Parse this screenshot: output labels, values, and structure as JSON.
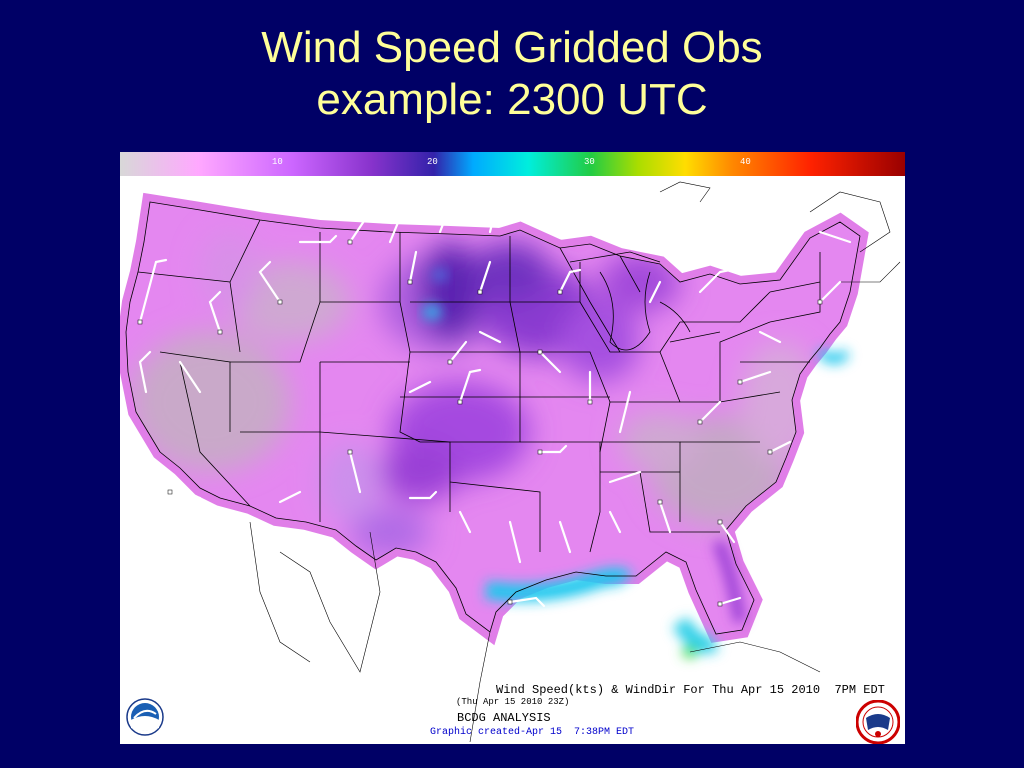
{
  "slide": {
    "title_line1": "Wind Speed Gridded Obs",
    "title_line2": "example: 2300 UTC"
  },
  "colorbar": {
    "ticks": [
      "10",
      "20",
      "30",
      "40"
    ],
    "colors": [
      "#d8d8d8",
      "#ffa8ff",
      "#cc66ff",
      "#8833cc",
      "#3322aa",
      "#00aaff",
      "#00eedd",
      "#22cc44",
      "#aadd00",
      "#ffdd00",
      "#ff8800",
      "#ff2200",
      "#990000"
    ]
  },
  "map": {
    "region": "Contiguous United States",
    "palette": {
      "land_base": "#e487f0",
      "calm": "#c9a9c9",
      "moderate": "#9a3fd6",
      "strong": "#5a22b0",
      "coastal": "#22c8ee"
    }
  },
  "caption": {
    "main": "Wind Speed(kts) & WindDir For Thu Apr 15 2010  7PM EDT",
    "sub": "(Thu Apr 15 2010 23Z)",
    "analysis": "BCDG ANALYSIS",
    "created": "Graphic created-Apr 15  7:38PM EDT"
  },
  "logos": {
    "left": "NOAA",
    "right": "NATIONAL WEATHER SERVICE"
  }
}
